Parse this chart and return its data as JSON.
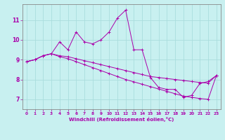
{
  "title": "",
  "xlabel": "Windchill (Refroidissement éolien,°C)",
  "background_color": "#c8f0f0",
  "grid_color": "#aadddd",
  "line_color": "#aa00aa",
  "spine_color": "#888888",
  "xlim": [
    -0.5,
    23.5
  ],
  "ylim": [
    6.5,
    11.8
  ],
  "xticks": [
    0,
    1,
    2,
    3,
    4,
    5,
    6,
    7,
    8,
    9,
    10,
    11,
    12,
    13,
    14,
    15,
    16,
    17,
    18,
    19,
    20,
    21,
    22,
    23
  ],
  "yticks": [
    7,
    8,
    9,
    10,
    11
  ],
  "series": [
    [
      8.9,
      9.0,
      9.2,
      9.3,
      9.9,
      9.5,
      10.4,
      9.9,
      9.8,
      10.0,
      10.4,
      11.1,
      11.5,
      9.5,
      9.5,
      8.1,
      7.6,
      7.5,
      7.5,
      7.1,
      7.2,
      7.8,
      7.9,
      8.2
    ],
    [
      8.9,
      9.0,
      9.2,
      9.3,
      9.2,
      9.15,
      9.05,
      8.95,
      8.85,
      8.75,
      8.65,
      8.55,
      8.45,
      8.35,
      8.25,
      8.15,
      8.1,
      8.05,
      8.0,
      7.95,
      7.9,
      7.85,
      7.82,
      8.2
    ],
    [
      8.9,
      9.0,
      9.2,
      9.3,
      9.15,
      9.05,
      8.9,
      8.75,
      8.6,
      8.45,
      8.3,
      8.15,
      8.0,
      7.88,
      7.76,
      7.64,
      7.52,
      7.4,
      7.28,
      7.16,
      7.1,
      7.04,
      7.0,
      8.2
    ]
  ]
}
